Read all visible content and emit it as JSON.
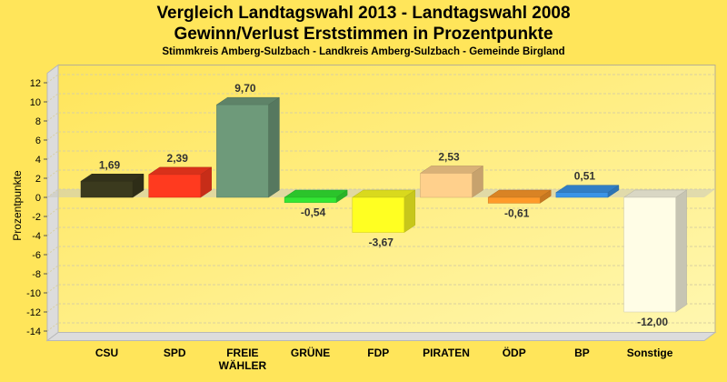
{
  "chart_data": {
    "type": "bar",
    "title": "Vergleich Landtagswahl 2013 - Landtagswahl 2008",
    "subtitle_line1": "Gewinn/Verlust Erststimmen in Prozentpunkte",
    "subtitle_line2": "Stimmkreis Amberg-Sulzbach - Landkreis Amberg-Sulzbach - Gemeinde Birgland",
    "xlabel": "",
    "ylabel": "Prozentpunkte",
    "ylim": [
      -15,
      13
    ],
    "yticks": [
      12,
      10,
      8,
      6,
      4,
      2,
      0,
      -2,
      -4,
      -6,
      -8,
      -10,
      -12,
      -14
    ],
    "ytick_labels": [
      "12",
      "10",
      "8",
      "6",
      "4",
      "2",
      "0",
      "-2",
      "-4",
      "-6",
      "-8",
      "-10",
      "-12",
      "-14"
    ],
    "grid": true,
    "style": "3d",
    "categories": [
      "CSU",
      "SPD",
      "FREIE WÄHLER",
      "GRÜNE",
      "FDP",
      "PIRATEN",
      "ÖDP",
      "BP",
      "Sonstige"
    ],
    "category_lines": [
      [
        "CSU"
      ],
      [
        "SPD"
      ],
      [
        "FREIE",
        "WÄHLER"
      ],
      [
        "GRÜNE"
      ],
      [
        "FDP"
      ],
      [
        "PIRATEN"
      ],
      [
        "ÖDP"
      ],
      [
        "BP"
      ],
      [
        "Sonstige"
      ]
    ],
    "values": [
      1.69,
      2.39,
      9.7,
      -0.54,
      -3.67,
      2.53,
      -0.61,
      0.51,
      -12.0
    ],
    "value_labels": [
      "1,69",
      "2,39",
      "9,70",
      "-0,54",
      "-3,67",
      "2,53",
      "-0,61",
      "0,51",
      "-12,00"
    ],
    "colors": [
      "#3b3a1e",
      "#ff3a1f",
      "#6e9a7a",
      "#33e633",
      "#ffff22",
      "#ffd08c",
      "#ff9a2a",
      "#3a94e6",
      "#fffde6"
    ]
  },
  "colors": {
    "background": "#ffe55a",
    "plot_background": "#fff39a",
    "wall": "#dcdcdc",
    "grid": "#d8d0a0"
  }
}
